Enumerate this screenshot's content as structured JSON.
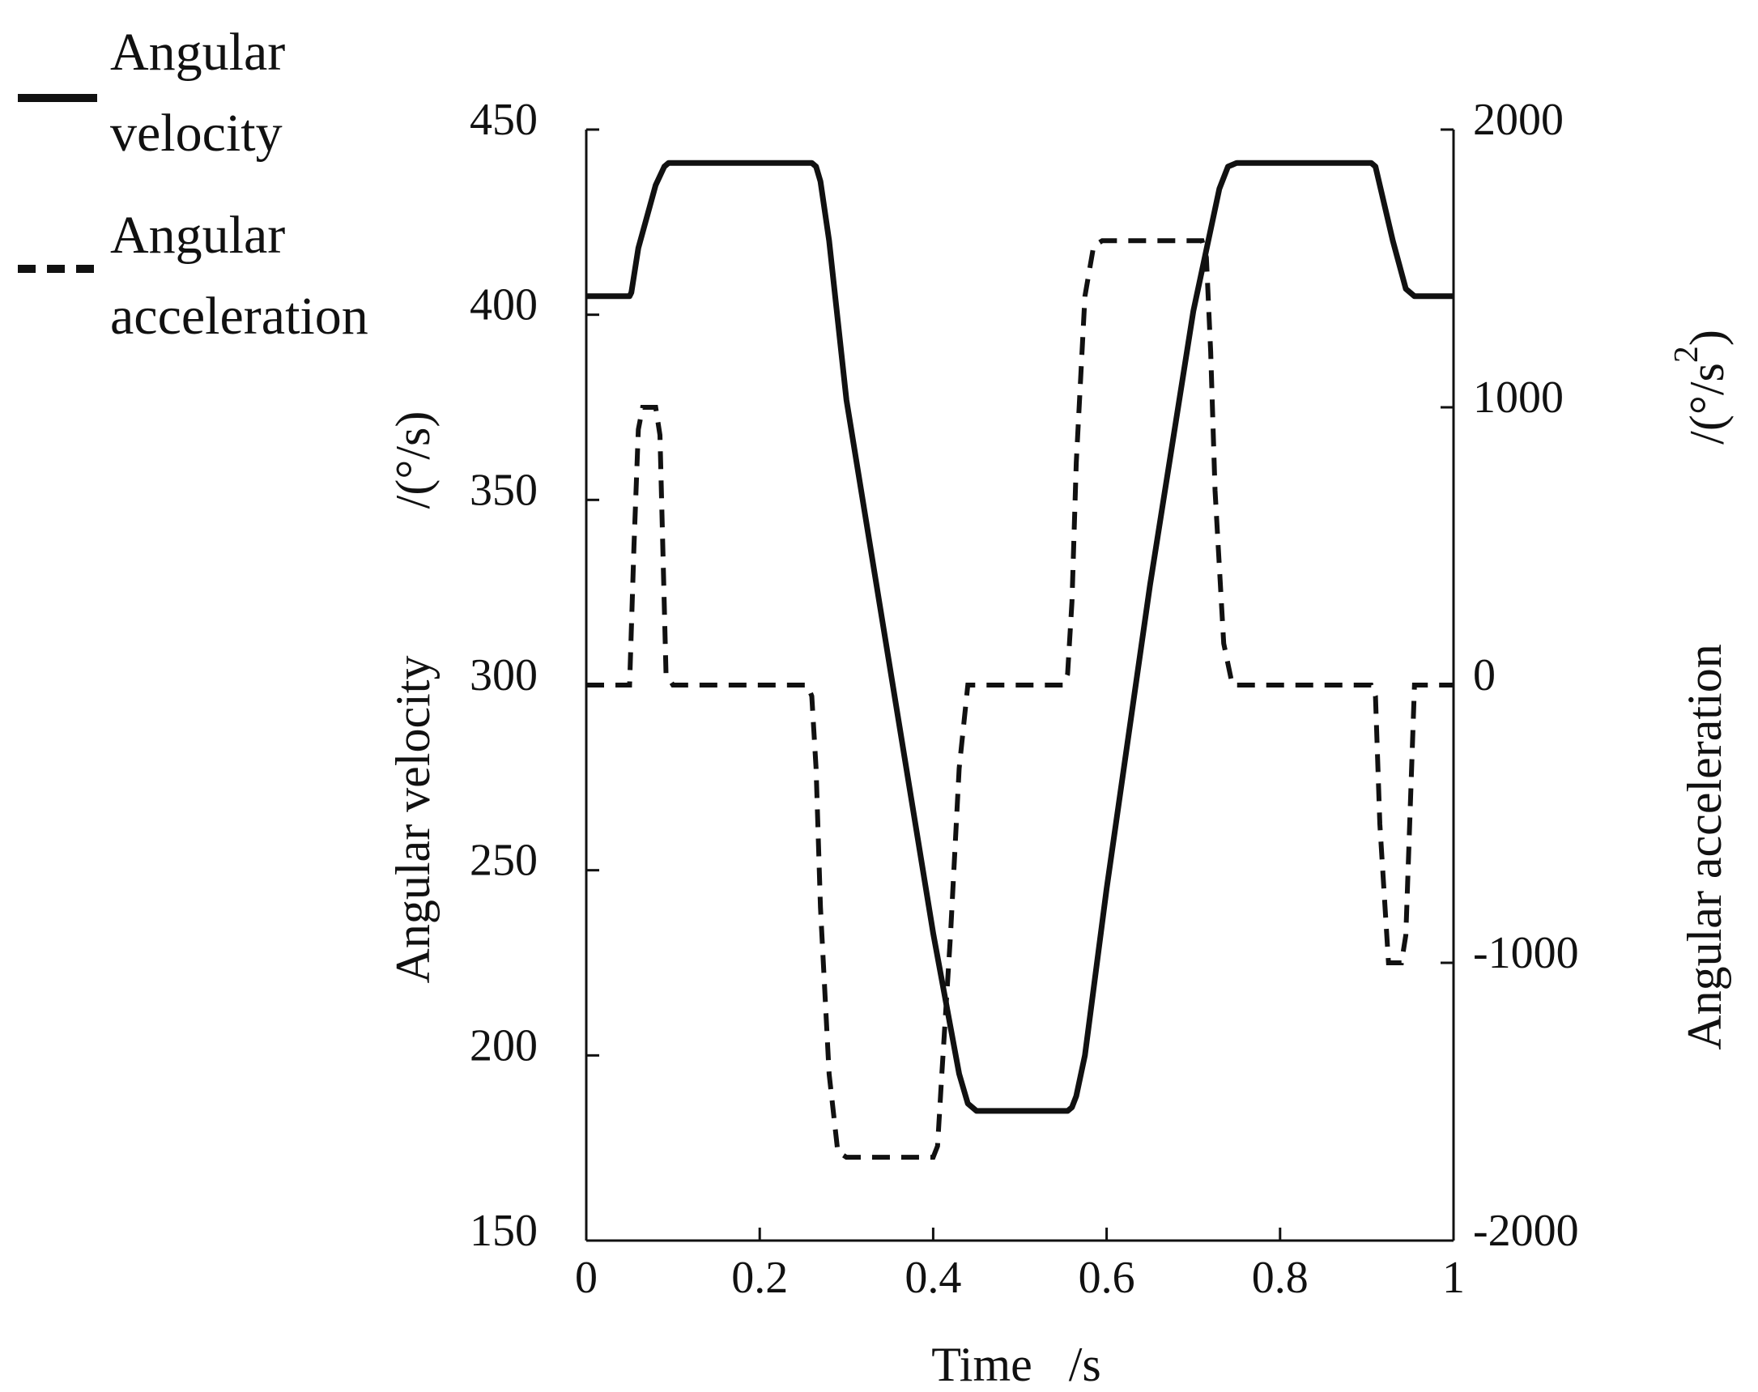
{
  "chart_data": {
    "type": "line",
    "xlabel": "Time   /s",
    "ylabel_left": "Angular velocity",
    "ylabel_left_unit": "/(°/s)",
    "ylabel_right": "Angular acceleration",
    "ylabel_right_unit": "/(°/s",
    "ylabel_right_unit_exp": "2",
    "ylabel_right_unit_close": ")",
    "xlim": [
      0,
      1
    ],
    "ylim_left": [
      150,
      450
    ],
    "ylim_right": [
      -2000,
      2000
    ],
    "x_ticks": [
      0,
      0.2,
      0.4,
      0.6,
      0.8,
      1
    ],
    "x_tick_labels": [
      "0",
      "0.2",
      "0.4",
      "0.6",
      "0.8",
      "1"
    ],
    "y_left_ticks": [
      150,
      200,
      250,
      300,
      350,
      400,
      450
    ],
    "y_left_tick_labels": [
      "150",
      "200",
      "250",
      "300",
      "350",
      "400",
      "450"
    ],
    "y_right_ticks": [
      -2000,
      -1000,
      0,
      1000,
      2000
    ],
    "y_right_tick_labels": [
      "-2000",
      "-1000",
      "0",
      "1000",
      "2000"
    ],
    "grid": false,
    "legend_position": "top-left, outside plot",
    "legend": [
      {
        "line1": "Angular",
        "line2": "velocity",
        "style": "solid"
      },
      {
        "line1": "Angular",
        "line2": "acceleration",
        "style": "dashed"
      }
    ],
    "series": [
      {
        "name": "Angular velocity",
        "axis": "left",
        "style": "solid",
        "x": [
          0,
          0.05,
          0.052,
          0.06,
          0.08,
          0.09,
          0.095,
          0.26,
          0.265,
          0.27,
          0.28,
          0.3,
          0.35,
          0.4,
          0.43,
          0.44,
          0.45,
          0.555,
          0.56,
          0.565,
          0.575,
          0.6,
          0.65,
          0.7,
          0.73,
          0.74,
          0.75,
          0.905,
          0.91,
          0.93,
          0.945,
          0.955,
          1.0
        ],
        "y": [
          405,
          405,
          406,
          418,
          435,
          440,
          441,
          441,
          440,
          436,
          420,
          377,
          305,
          233,
          195,
          187,
          185,
          185,
          186,
          189,
          200,
          245,
          327,
          401,
          434,
          440,
          441,
          441,
          440,
          420,
          407,
          405,
          405
        ]
      },
      {
        "name": "Angular acceleration",
        "axis": "right",
        "style": "dashed",
        "color": "#111111",
        "x": [
          0,
          0.05,
          0.055,
          0.06,
          0.065,
          0.08,
          0.085,
          0.092,
          0.1,
          0.255,
          0.26,
          0.265,
          0.27,
          0.28,
          0.29,
          0.3,
          0.32,
          0.4,
          0.405,
          0.41,
          0.42,
          0.43,
          0.44,
          0.45,
          0.46,
          0.55,
          0.555,
          0.56,
          0.565,
          0.575,
          0.585,
          0.595,
          0.61,
          0.71,
          0.715,
          0.72,
          0.725,
          0.735,
          0.745,
          0.755,
          0.905,
          0.91,
          0.915,
          0.925,
          0.94,
          0.945,
          0.955,
          1.0
        ],
        "y": [
          0,
          0,
          500,
          920,
          1000,
          1000,
          900,
          40,
          0,
          0,
          -40,
          -300,
          -800,
          -1400,
          -1680,
          -1700,
          -1700,
          -1700,
          -1660,
          -1400,
          -900,
          -300,
          0,
          0,
          0,
          0,
          40,
          300,
          800,
          1400,
          1580,
          1600,
          1600,
          1600,
          1540,
          1200,
          700,
          150,
          0,
          0,
          0,
          -40,
          -500,
          -1000,
          -1000,
          -900,
          0,
          0
        ]
      }
    ]
  }
}
